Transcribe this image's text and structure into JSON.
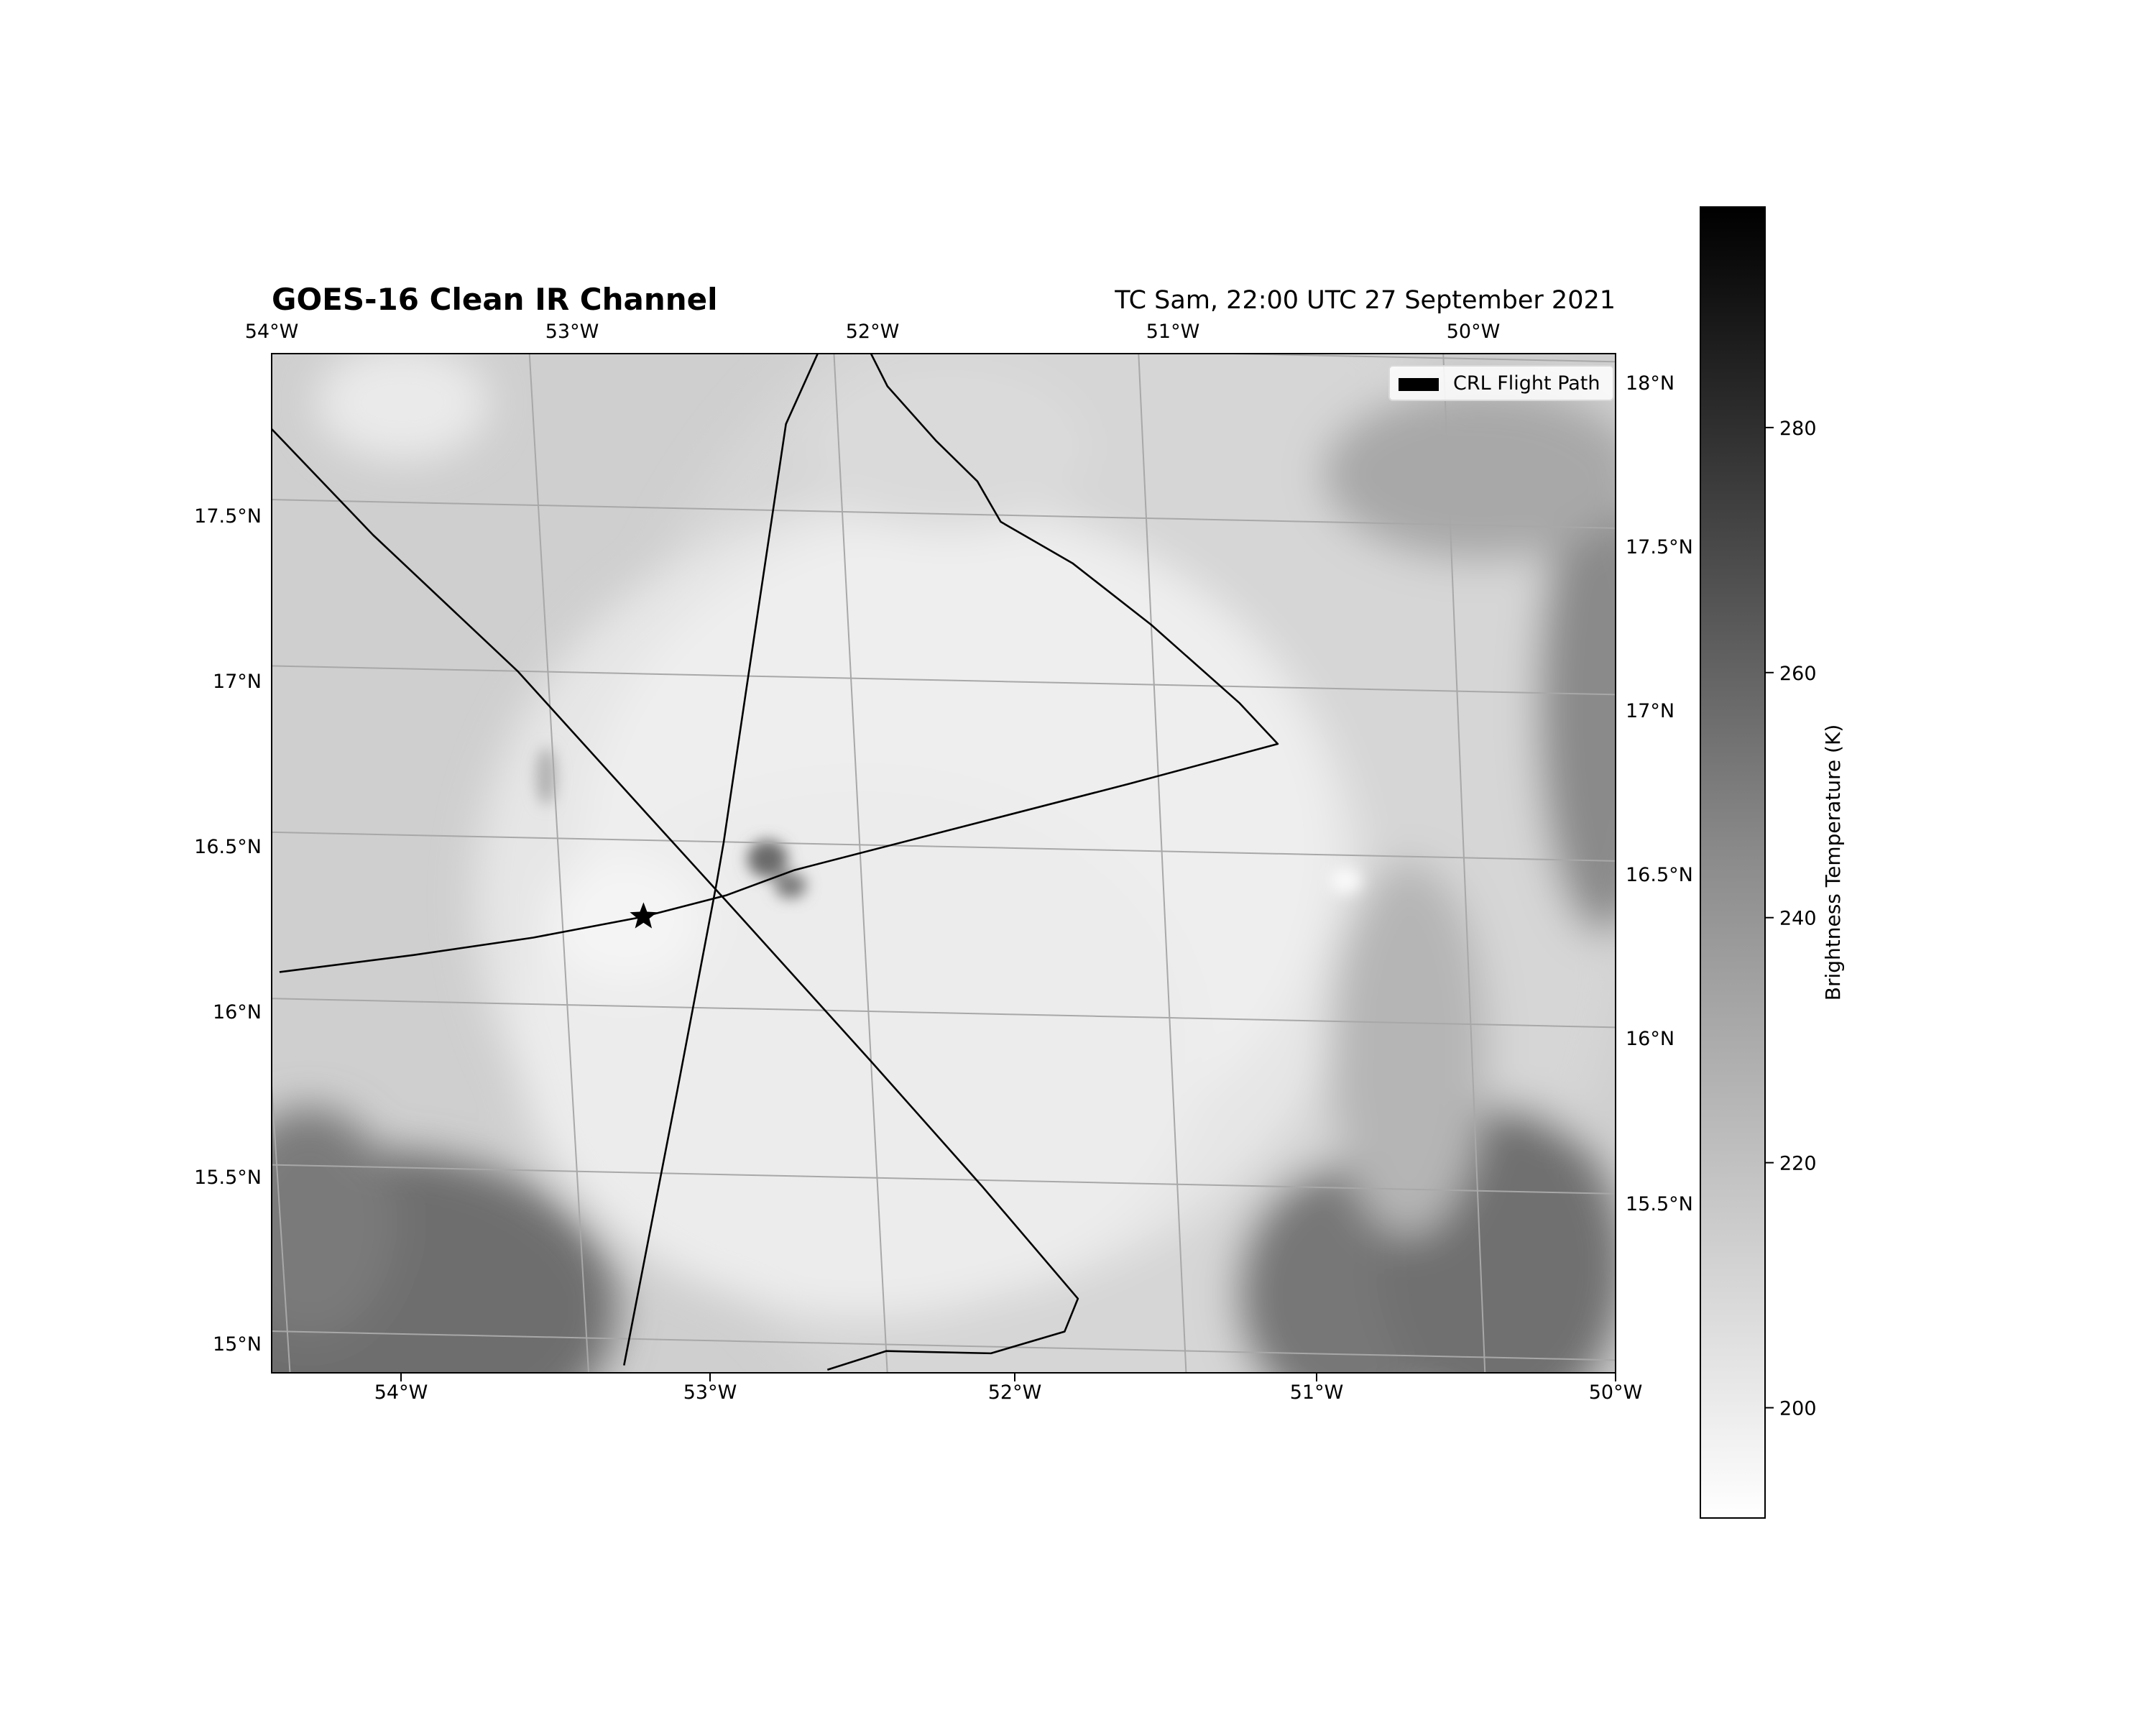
{
  "title": "GOES-16 Clean IR Channel",
  "subtitle": "TC Sam, 22:00 UTC 27 September 2021",
  "legend": {
    "label": "CRL Flight Path"
  },
  "map": {
    "top_lon_labels": [
      "54°W",
      "53°W",
      "52°W",
      "51°W",
      "50°W"
    ],
    "bottom_lon_labels": [
      "54°W",
      "53°W",
      "52°W",
      "51°W",
      "50°W"
    ],
    "left_lat_labels": [
      "17.5°N",
      "17°N",
      "16.5°N",
      "16°N",
      "15.5°N",
      "15°N"
    ],
    "right_lat_labels": [
      "18°N",
      "17.5°N",
      "17°N",
      "16.5°N",
      "16°N",
      "15.5°N"
    ],
    "lon_extent": [
      -54.45,
      -50.0
    ],
    "lat_extent": [
      14.92,
      17.98
    ],
    "storm_center": {
      "lon": -52.8,
      "lat": 16.45
    },
    "marker": {
      "symbol": "star",
      "lon": -53.23,
      "lat": 16.27
    }
  },
  "flight_path": [
    [
      [
        -54.45,
        17.8
      ],
      [
        -54.05,
        17.4
      ],
      [
        -53.6,
        17.0
      ],
      [
        -53.2,
        16.58
      ],
      [
        -52.95,
        16.32
      ],
      [
        -52.5,
        15.85
      ],
      [
        -52.15,
        15.48
      ],
      [
        -51.85,
        15.15
      ],
      [
        -51.9,
        15.05
      ],
      [
        -52.15,
        14.98
      ],
      [
        -52.5,
        14.98
      ],
      [
        -52.7,
        14.92
      ]
    ],
    [
      [
        -53.38,
        14.92
      ],
      [
        -53.15,
        15.75
      ],
      [
        -52.98,
        16.38
      ],
      [
        -52.95,
        16.5
      ],
      [
        -52.85,
        16.95
      ],
      [
        -52.67,
        17.76
      ],
      [
        -52.55,
        17.98
      ]
    ],
    [
      [
        -54.45,
        16.08
      ],
      [
        -54.0,
        16.14
      ],
      [
        -53.6,
        16.2
      ],
      [
        -53.23,
        16.27
      ],
      [
        -52.95,
        16.34
      ],
      [
        -52.72,
        16.42
      ],
      [
        -52.2,
        16.55
      ],
      [
        -51.6,
        16.7
      ],
      [
        -51.1,
        16.83
      ],
      [
        -51.22,
        16.95
      ],
      [
        -51.5,
        17.18
      ],
      [
        -51.75,
        17.36
      ],
      [
        -51.98,
        17.48
      ],
      [
        -52.05,
        17.6
      ],
      [
        -52.18,
        17.72
      ],
      [
        -52.33,
        17.88
      ],
      [
        -52.38,
        17.98
      ]
    ]
  ],
  "colorbar": {
    "label": "Brightness Temperature (K)",
    "ticks": [
      200,
      220,
      240,
      260,
      280
    ],
    "range": [
      191,
      298
    ]
  }
}
